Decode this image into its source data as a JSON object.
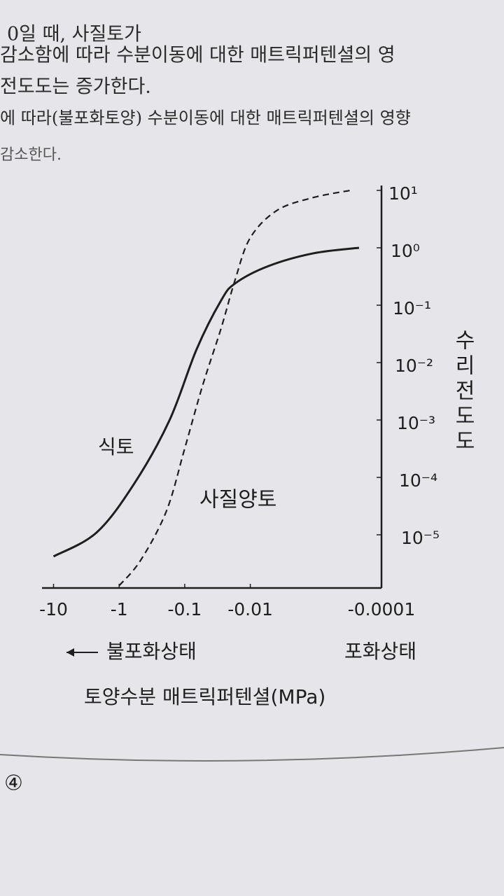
{
  "text_lines": [
    "0일 때, 사질토가",
    "감소함에 따라 수분이동에 대한 매트릭퍼텐셜의 영",
    "전도도는 증가한다.",
    "에 따라(불포화토양) 수분이동에 대한 매트릭퍼텐셜의 영향",
    "감소한다."
  ],
  "footer": "④",
  "chart_data": {
    "type": "line",
    "xlabel": "토양수분 매트릭퍼텐셜(MPa)",
    "ylabel": "수리전도도",
    "annotations": [
      "불포화상태",
      "포화상태"
    ],
    "xscale": "log",
    "yscale": "log",
    "xlim": [
      -15,
      -0.0001
    ],
    "xticks": [
      -10,
      -1,
      -0.1,
      -0.01,
      -0.0001
    ],
    "ylim": [
      1e-06,
      10
    ],
    "yticks": [
      {
        "value": 10,
        "label": "10¹"
      },
      {
        "value": 1,
        "label": "10⁰"
      },
      {
        "value": 0.1,
        "label": "10⁻¹"
      },
      {
        "value": 0.01,
        "label": "10⁻²"
      },
      {
        "value": 0.001,
        "label": "10⁻³"
      },
      {
        "value": 0.0001,
        "label": "10⁻⁴"
      },
      {
        "value": 1e-05,
        "label": "10⁻⁵"
      }
    ],
    "series": [
      {
        "name": "식토",
        "color": "#1e1e1e",
        "line_style": "solid",
        "x": [
          -10,
          -2.2,
          -0.58,
          -0.17,
          -0.066,
          -0.028,
          -0.017,
          -0.0053,
          -0.0011,
          -0.00022
        ],
        "values": [
          4.2e-06,
          1.1e-05,
          8e-05,
          0.001,
          0.017,
          0.12,
          0.24,
          0.48,
          0.8,
          1.0
        ]
      },
      {
        "name": "사질양토",
        "color": "#1e1e1e",
        "line_style": "dashed",
        "x": [
          -1,
          -0.47,
          -0.19,
          -0.1,
          -0.053,
          -0.028,
          -0.017,
          -0.01,
          -0.0039,
          -0.0011,
          -0.0003
        ],
        "values": [
          1.3e-06,
          3.6e-06,
          2.6e-05,
          0.00032,
          0.0041,
          0.039,
          0.28,
          1.5,
          4.5,
          7.5,
          10
        ]
      }
    ]
  }
}
